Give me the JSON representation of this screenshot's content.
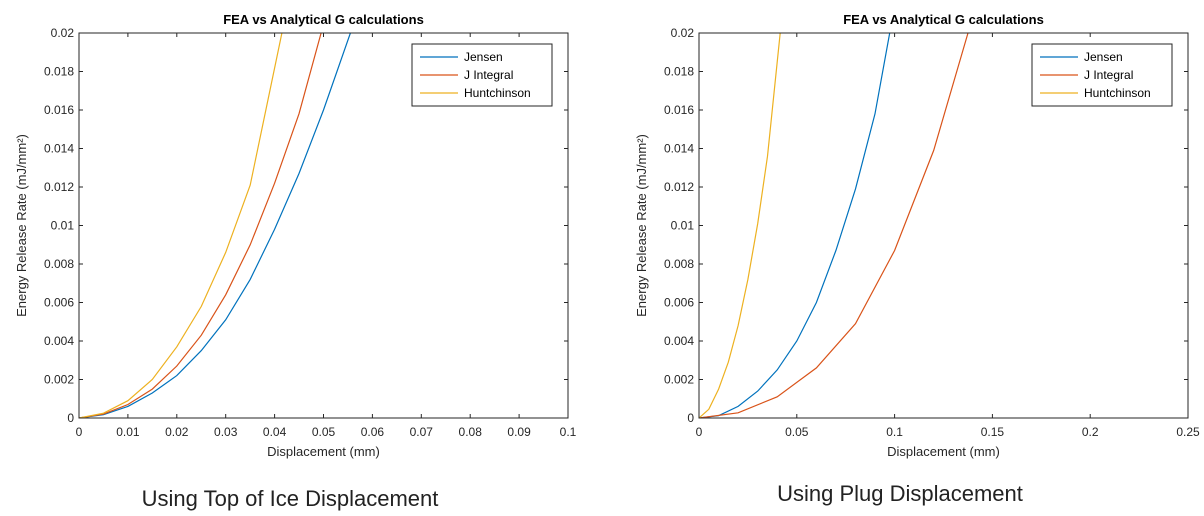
{
  "colors": {
    "jensen": "#0072BD",
    "j_integral": "#D95319",
    "huntchinson": "#EDB120"
  },
  "captions": {
    "left": "Using Top of Ice Displacement",
    "right": "Using Plug Displacement"
  },
  "chart_data": [
    {
      "type": "line",
      "title": "FEA vs Analytical G calculations",
      "xlabel": "Displacement (mm)",
      "ylabel": "Energy Release Rate (mJ/mm²)",
      "xlim": [
        0,
        0.1
      ],
      "ylim": [
        0,
        0.02
      ],
      "xticks": [
        0,
        0.01,
        0.02,
        0.03,
        0.04,
        0.05,
        0.06,
        0.07,
        0.08,
        0.09,
        0.1
      ],
      "xtick_labels": [
        "0",
        "0.01",
        "0.02",
        "0.03",
        "0.04",
        "0.05",
        "0.06",
        "0.07",
        "0.08",
        "0.09",
        "0.1"
      ],
      "yticks": [
        0,
        0.002,
        0.004,
        0.006,
        0.008,
        0.01,
        0.012,
        0.014,
        0.016,
        0.018,
        0.02
      ],
      "ytick_labels": [
        "0",
        "0.002",
        "0.004",
        "0.006",
        "0.008",
        "0.01",
        "0.012",
        "0.014",
        "0.016",
        "0.018",
        "0.02"
      ],
      "grid": false,
      "legend": "top-right",
      "series": [
        {
          "name": "Jensen",
          "color_key": "jensen",
          "x": [
            0,
            0.005,
            0.01,
            0.015,
            0.02,
            0.025,
            0.03,
            0.035,
            0.04,
            0.045,
            0.05,
            0.0555
          ],
          "y": [
            0,
            0.00017,
            0.0006,
            0.0013,
            0.0022,
            0.0035,
            0.0051,
            0.0072,
            0.0098,
            0.0127,
            0.016,
            0.02
          ]
        },
        {
          "name": "J Integral",
          "color_key": "j_integral",
          "x": [
            0,
            0.005,
            0.01,
            0.015,
            0.02,
            0.025,
            0.03,
            0.035,
            0.04,
            0.045,
            0.0495
          ],
          "y": [
            0,
            0.0002,
            0.0007,
            0.0015,
            0.0027,
            0.0043,
            0.0064,
            0.009,
            0.0122,
            0.0158,
            0.02
          ]
        },
        {
          "name": "Huntchinson",
          "color_key": "huntchinson",
          "x": [
            0,
            0.005,
            0.01,
            0.015,
            0.02,
            0.025,
            0.03,
            0.035,
            0.0415
          ],
          "y": [
            0,
            0.00025,
            0.0009,
            0.002,
            0.0037,
            0.0058,
            0.0086,
            0.0121,
            0.02
          ]
        }
      ]
    },
    {
      "type": "line",
      "title": "FEA vs Analytical G calculations",
      "xlabel": "Displacement (mm)",
      "ylabel": "Energy Release Rate (mJ/mm²)",
      "xlim": [
        0,
        0.25
      ],
      "ylim": [
        0,
        0.02
      ],
      "xticks": [
        0,
        0.05,
        0.1,
        0.15,
        0.2,
        0.25
      ],
      "xtick_labels": [
        "0",
        "0.05",
        "0.1",
        "0.15",
        "0.2",
        "0.25"
      ],
      "yticks": [
        0,
        0.002,
        0.004,
        0.006,
        0.008,
        0.01,
        0.012,
        0.014,
        0.016,
        0.018,
        0.02
      ],
      "ytick_labels": [
        "0",
        "0.002",
        "0.004",
        "0.006",
        "0.008",
        "0.01",
        "0.012",
        "0.014",
        "0.016",
        "0.018",
        "0.02"
      ],
      "grid": false,
      "legend": "top-right",
      "series": [
        {
          "name": "Jensen",
          "color_key": "jensen",
          "x": [
            0,
            0.01,
            0.02,
            0.03,
            0.04,
            0.05,
            0.06,
            0.07,
            0.08,
            0.09,
            0.0975
          ],
          "y": [
            0,
            0.00012,
            0.0006,
            0.0014,
            0.0025,
            0.004,
            0.006,
            0.0087,
            0.0119,
            0.0158,
            0.02
          ]
        },
        {
          "name": "J Integral",
          "color_key": "j_integral",
          "x": [
            0,
            0.02,
            0.04,
            0.06,
            0.08,
            0.1,
            0.12,
            0.1375
          ],
          "y": [
            0,
            0.00027,
            0.0011,
            0.0026,
            0.0049,
            0.0087,
            0.0139,
            0.02
          ]
        },
        {
          "name": "Huntchinson",
          "color_key": "huntchinson",
          "x": [
            0,
            0.005,
            0.01,
            0.015,
            0.02,
            0.025,
            0.03,
            0.035,
            0.0415
          ],
          "y": [
            0,
            0.00045,
            0.0015,
            0.0029,
            0.0048,
            0.0072,
            0.0101,
            0.0136,
            0.02
          ]
        }
      ]
    }
  ]
}
